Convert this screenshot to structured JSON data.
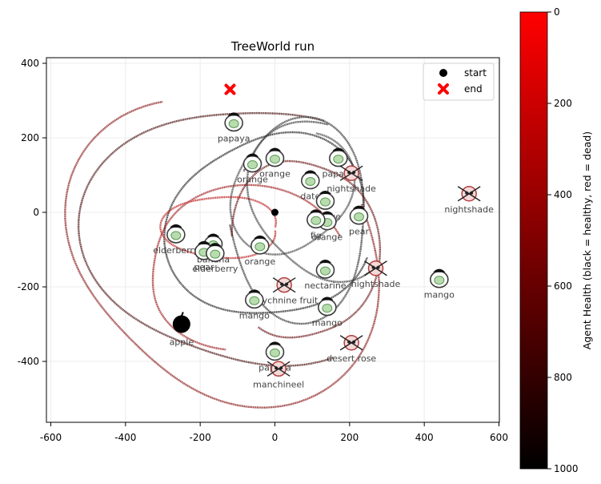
{
  "chart_data": {
    "type": "scatter",
    "title": "TreeWorld run",
    "xlabel": "",
    "ylabel": "",
    "xlim": [
      -620,
      620
    ],
    "ylim": [
      -560,
      420
    ],
    "x_ticks": [
      -600,
      -400,
      -200,
      0,
      200,
      400,
      600
    ],
    "y_ticks": [
      -400,
      -200,
      0,
      200,
      400
    ],
    "grid": true,
    "legend": {
      "placement": "top-right",
      "entries": [
        {
          "label": "start",
          "marker": "circle",
          "color": "#000000"
        },
        {
          "label": "end",
          "marker": "x",
          "color": "#ff0000"
        }
      ]
    },
    "colorbar": {
      "label": "Agent Health (black = healthy, red = dead)",
      "range": [
        0,
        1000
      ],
      "ticks": [
        0,
        200,
        400,
        600,
        800,
        1000
      ],
      "colors": [
        "#000000",
        "#ff0000"
      ]
    },
    "start": [
      0,
      0
    ],
    "end": [
      -120,
      330
    ],
    "items": [
      {
        "name": "papaya",
        "x": -110,
        "y": 240,
        "kind": "fruit"
      },
      {
        "name": "orange",
        "x": -60,
        "y": 130,
        "kind": "fruit"
      },
      {
        "name": "orange",
        "x": 0,
        "y": 145,
        "kind": "fruit"
      },
      {
        "name": "papaya",
        "x": 170,
        "y": 145,
        "kind": "fruit"
      },
      {
        "name": "nightshade",
        "x": 205,
        "y": 105,
        "kind": "poison"
      },
      {
        "name": "date",
        "x": 95,
        "y": 85,
        "kind": "fruit"
      },
      {
        "name": "orange",
        "x": 135,
        "y": 30,
        "kind": "fruit"
      },
      {
        "name": "orange",
        "x": 140,
        "y": -25,
        "kind": "fruit"
      },
      {
        "name": "fig",
        "x": 110,
        "y": -20,
        "kind": "fruit"
      },
      {
        "name": "pear",
        "x": 225,
        "y": -10,
        "kind": "fruit"
      },
      {
        "name": "nightshade",
        "x": 520,
        "y": 50,
        "kind": "poison"
      },
      {
        "name": "elderberry",
        "x": -265,
        "y": -60,
        "kind": "fruit"
      },
      {
        "name": "banana",
        "x": -165,
        "y": -85,
        "kind": "fruit"
      },
      {
        "name": "pear",
        "x": -190,
        "y": -105,
        "kind": "fruit"
      },
      {
        "name": "elderberry",
        "x": -160,
        "y": -110,
        "kind": "fruit"
      },
      {
        "name": "orange",
        "x": -40,
        "y": -90,
        "kind": "fruit"
      },
      {
        "name": "nectarine",
        "x": 135,
        "y": -155,
        "kind": "fruit"
      },
      {
        "name": "nightshade",
        "x": 270,
        "y": -150,
        "kind": "poison"
      },
      {
        "name": "mango",
        "x": 440,
        "y": -180,
        "kind": "fruit"
      },
      {
        "name": "strychnine fruit",
        "x": 25,
        "y": -195,
        "kind": "poison"
      },
      {
        "name": "mango",
        "x": -55,
        "y": -235,
        "kind": "fruit"
      },
      {
        "name": "mango",
        "x": 140,
        "y": -255,
        "kind": "fruit"
      },
      {
        "name": "apple",
        "x": -250,
        "y": -300,
        "kind": "fruit"
      },
      {
        "name": "desert rose",
        "x": 205,
        "y": -350,
        "kind": "poison"
      },
      {
        "name": "papaya",
        "x": 0,
        "y": -375,
        "kind": "fruit"
      },
      {
        "name": "manchineel",
        "x": 10,
        "y": -420,
        "kind": "poison"
      }
    ]
  }
}
